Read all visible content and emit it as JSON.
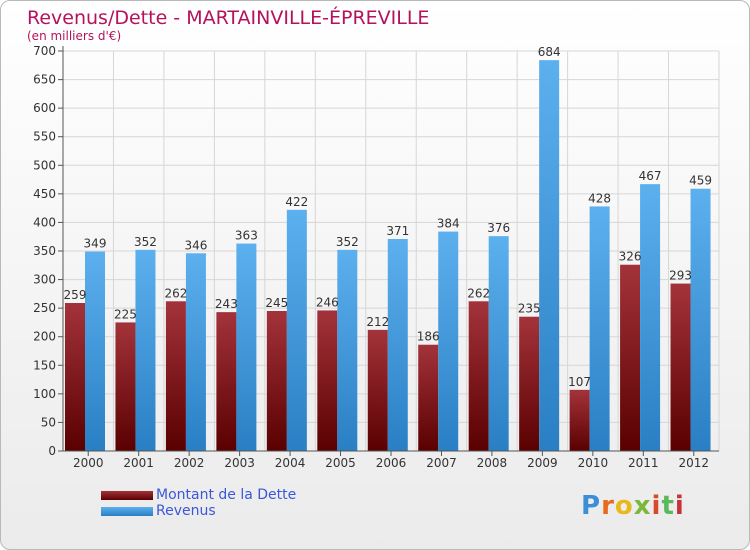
{
  "title": "Revenus/Dette - MARTAINVILLE-ÉPREVILLE",
  "subtitle": "(en milliers d'€)",
  "logo_text": "Proxiti",
  "colors": {
    "title": "#b4125c",
    "dette_dark": "#5a0000",
    "dette_light": "#a3333a",
    "revenus_dark": "#2a7fc4",
    "revenus_light": "#5cb0ee",
    "legend_text": "#3b57d8"
  },
  "chart_data": {
    "type": "bar",
    "categories": [
      "2000",
      "2001",
      "2002",
      "2003",
      "2004",
      "2005",
      "2006",
      "2007",
      "2008",
      "2009",
      "2010",
      "2011",
      "2012"
    ],
    "series": [
      {
        "name": "Montant de la Dette",
        "values": [
          259,
          225,
          262,
          243,
          245,
          246,
          212,
          186,
          262,
          235,
          107,
          326,
          293
        ]
      },
      {
        "name": "Revenus",
        "values": [
          349,
          352,
          346,
          363,
          422,
          352,
          371,
          384,
          376,
          684,
          428,
          467,
          459
        ]
      }
    ],
    "yticks": [
      0,
      50,
      100,
      150,
      200,
      250,
      300,
      350,
      400,
      450,
      500,
      550,
      600,
      650,
      700
    ],
    "ylim": [
      0,
      700
    ],
    "grid": true,
    "legend_position": "bottom-left"
  }
}
